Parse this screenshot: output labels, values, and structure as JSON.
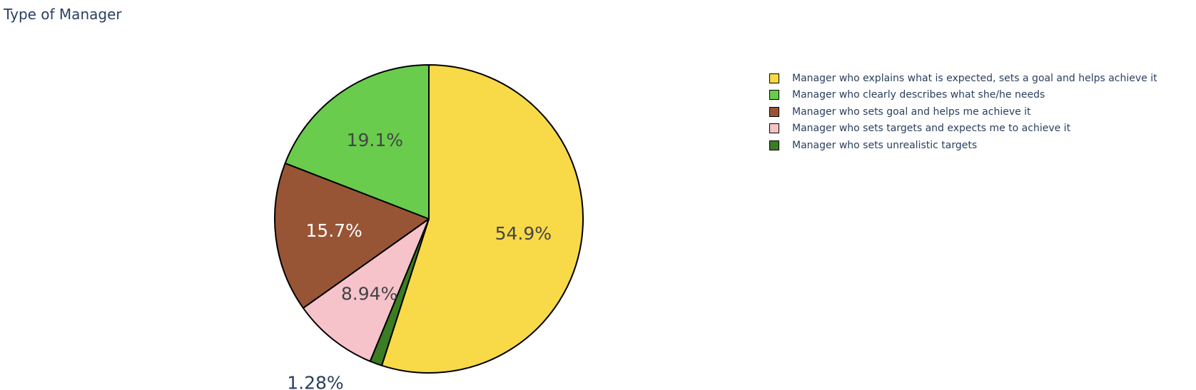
{
  "chart_data": {
    "type": "pie",
    "title": "Type of Manager",
    "legend_position": "right",
    "slice_order": "clockwise-from-top",
    "slices": [
      {
        "label": "Manager who explains what is expected, sets a goal and helps achieve it",
        "percent": 54.9,
        "text": "54.9%",
        "color": "#f8d948",
        "text_color": "#444444"
      },
      {
        "label": "Manager who sets unrealistic targets",
        "percent": 1.28,
        "text": "1.28%",
        "color": "#3a7d22",
        "text_color": "#2a3f5f",
        "text_outside": true
      },
      {
        "label": "Manager who sets targets and expects me to achieve it",
        "percent": 8.94,
        "text": "8.94%",
        "color": "#f6c3cb",
        "text_color": "#444444"
      },
      {
        "label": "Manager who sets goal and helps me achieve it",
        "percent": 15.7,
        "text": "15.7%",
        "color": "#985535",
        "text_color": "#ffffff"
      },
      {
        "label": "Manager who clearly describes what she/he needs",
        "percent": 19.1,
        "text": "19.1%",
        "color": "#69cc4c",
        "text_color": "#444444"
      }
    ],
    "legend": [
      {
        "label": "Manager who explains what is expected, sets a goal and helps achieve it",
        "color": "#f8d948"
      },
      {
        "label": "Manager who clearly describes what she/he needs",
        "color": "#69cc4c"
      },
      {
        "label": "Manager who sets goal and helps me achieve it",
        "color": "#985535"
      },
      {
        "label": "Manager who sets targets and expects me to achieve it",
        "color": "#f6c3cb"
      },
      {
        "label": "Manager who sets unrealistic targets",
        "color": "#3a7d22"
      }
    ]
  }
}
